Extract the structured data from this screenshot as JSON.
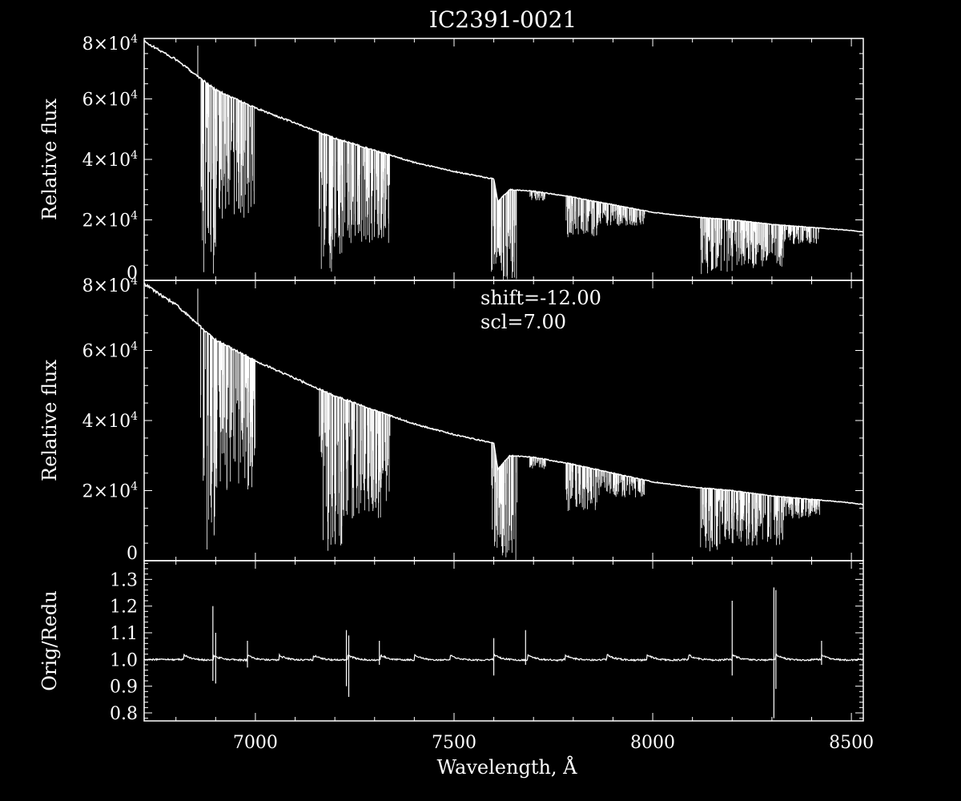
{
  "title": "IC2391-0021",
  "colors": {
    "background": "#000000",
    "foreground": "#ffffff"
  },
  "panels": [
    {
      "id": "top",
      "ylabel": "Relative flux",
      "ylim": [
        0,
        80000
      ],
      "yticks": [
        {
          "value": 80000,
          "mant": "8",
          "exp": "4"
        },
        {
          "value": 60000,
          "mant": "6",
          "exp": "4"
        },
        {
          "value": 40000,
          "mant": "4",
          "exp": "4"
        },
        {
          "value": 20000,
          "mant": "2",
          "exp": "4"
        },
        {
          "value": 0,
          "mant": "0",
          "exp": ""
        }
      ]
    },
    {
      "id": "middle",
      "ylabel": "Relative flux",
      "ylim": [
        0,
        80000
      ],
      "annotations": [
        "shift=-12.00",
        "scl=7.00"
      ],
      "yticks": [
        {
          "value": 80000,
          "mant": "8",
          "exp": "4"
        },
        {
          "value": 60000,
          "mant": "6",
          "exp": "4"
        },
        {
          "value": 40000,
          "mant": "4",
          "exp": "4"
        },
        {
          "value": 20000,
          "mant": "2",
          "exp": "4"
        },
        {
          "value": 0,
          "mant": "0",
          "exp": ""
        }
      ]
    },
    {
      "id": "bottom",
      "ylabel": "Orig/Redu",
      "ylim": [
        0.77,
        1.37
      ],
      "yticks": [
        {
          "value": 1.3,
          "label": "1.3"
        },
        {
          "value": 1.2,
          "label": "1.2"
        },
        {
          "value": 1.1,
          "label": "1.1"
        },
        {
          "value": 1.0,
          "label": "1.0"
        },
        {
          "value": 0.9,
          "label": "0.9"
        },
        {
          "value": 0.8,
          "label": "0.8"
        }
      ]
    }
  ],
  "xaxis": {
    "label": "Wavelength, Å",
    "xlim": [
      6720,
      8530
    ],
    "ticks": [
      {
        "value": 7000,
        "label": "7000"
      },
      {
        "value": 7500,
        "label": "7500"
      },
      {
        "value": 8000,
        "label": "8000"
      },
      {
        "value": 8500,
        "label": "8500"
      }
    ]
  },
  "chart_data": {
    "type": "line",
    "title": "IC2391-0021",
    "xlabel": "Wavelength, Å",
    "xlim": [
      6720,
      8530
    ],
    "series": [
      {
        "panel": "top",
        "ylabel": "Relative flux",
        "ylim": [
          0,
          80000
        ],
        "continuum": {
          "x": [
            6720,
            6800,
            6860,
            6900,
            7000,
            7100,
            7200,
            7300,
            7400,
            7500,
            7600,
            7610,
            7640,
            7700,
            7800,
            7900,
            8000,
            8100,
            8200,
            8300,
            8400,
            8500,
            8530
          ],
          "y": [
            79000,
            73000,
            67000,
            63000,
            57000,
            52000,
            47000,
            43000,
            39000,
            36000,
            33500,
            26000,
            30000,
            29500,
            27500,
            25000,
            22500,
            21000,
            20000,
            18500,
            17500,
            16500,
            16000
          ]
        },
        "absorption_bands": [
          {
            "start": 6862,
            "end": 6900,
            "min_flux": 2000
          },
          {
            "start": 6900,
            "end": 7000,
            "min_flux": 20000
          },
          {
            "start": 7160,
            "end": 7220,
            "min_flux": 2000
          },
          {
            "start": 7220,
            "end": 7340,
            "min_flux": 12000
          },
          {
            "start": 7594,
            "end": 7660,
            "min_flux": 0
          },
          {
            "start": 7690,
            "end": 7730,
            "min_flux": 26000
          },
          {
            "start": 7780,
            "end": 7860,
            "min_flux": 14000
          },
          {
            "start": 7860,
            "end": 7980,
            "min_flux": 18000
          },
          {
            "start": 8120,
            "end": 8200,
            "min_flux": 2000
          },
          {
            "start": 8200,
            "end": 8330,
            "min_flux": 4000
          },
          {
            "start": 8330,
            "end": 8420,
            "min_flux": 12000
          }
        ]
      },
      {
        "panel": "middle",
        "ylabel": "Relative flux",
        "ylim": [
          0,
          80000
        ],
        "continuum": {
          "x": [
            6720,
            6800,
            6860,
            6900,
            7000,
            7100,
            7200,
            7300,
            7400,
            7500,
            7600,
            7610,
            7640,
            7700,
            7800,
            7900,
            8000,
            8100,
            8200,
            8300,
            8400,
            8500,
            8530
          ],
          "y": [
            79000,
            73000,
            67000,
            63000,
            57000,
            52000,
            47000,
            43000,
            39000,
            36000,
            33500,
            26000,
            30000,
            29500,
            27500,
            25000,
            22500,
            21000,
            20000,
            18500,
            17500,
            16500,
            16000
          ]
        },
        "absorption_bands": [
          {
            "start": 6862,
            "end": 6900,
            "min_flux": 2000
          },
          {
            "start": 6900,
            "end": 7000,
            "min_flux": 20000
          },
          {
            "start": 7160,
            "end": 7220,
            "min_flux": 2000
          },
          {
            "start": 7220,
            "end": 7340,
            "min_flux": 12000
          },
          {
            "start": 7594,
            "end": 7660,
            "min_flux": 0
          },
          {
            "start": 7690,
            "end": 7730,
            "min_flux": 26000
          },
          {
            "start": 7780,
            "end": 7860,
            "min_flux": 14000
          },
          {
            "start": 7860,
            "end": 7980,
            "min_flux": 18000
          },
          {
            "start": 8120,
            "end": 8200,
            "min_flux": 2000
          },
          {
            "start": 8200,
            "end": 8330,
            "min_flux": 4000
          },
          {
            "start": 8330,
            "end": 8420,
            "min_flux": 12000
          }
        ]
      },
      {
        "panel": "bottom",
        "ylabel": "Orig/Redu",
        "ylim": [
          0.77,
          1.37
        ],
        "baseline": 1.0,
        "periodic_features": [
          6820,
          6895,
          6980,
          7060,
          7145,
          7232,
          7315,
          7400,
          7490,
          7600,
          7685,
          7780,
          7885,
          7985,
          8090,
          8200,
          8310,
          8425
        ],
        "spikes": [
          {
            "x": 6893,
            "max": 1.2,
            "min": 0.92
          },
          {
            "x": 6900,
            "max": 1.1,
            "min": 0.91
          },
          {
            "x": 6980,
            "max": 1.07,
            "min": 0.97
          },
          {
            "x": 7229,
            "max": 1.11,
            "min": 0.9
          },
          {
            "x": 7235,
            "max": 1.09,
            "min": 0.86
          },
          {
            "x": 7312,
            "max": 1.07,
            "min": 0.98
          },
          {
            "x": 7600,
            "max": 1.08,
            "min": 0.94
          },
          {
            "x": 7680,
            "max": 1.11,
            "min": 0.98
          },
          {
            "x": 8200,
            "max": 1.22,
            "min": 0.94
          },
          {
            "x": 8305,
            "max": 1.27,
            "min": 0.78
          },
          {
            "x": 8310,
            "max": 1.26,
            "min": 0.89
          },
          {
            "x": 8425,
            "max": 1.07,
            "min": 0.98
          }
        ]
      }
    ]
  }
}
